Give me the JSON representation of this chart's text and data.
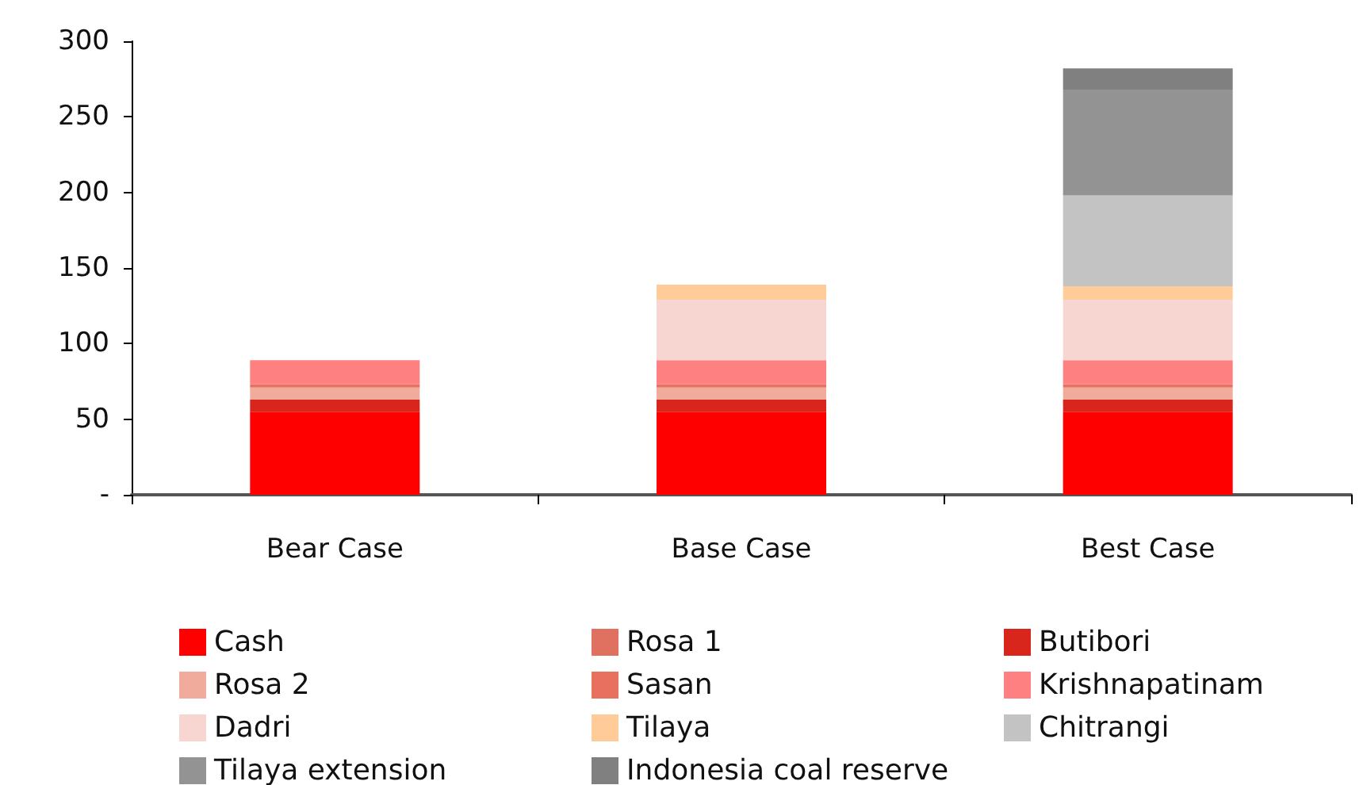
{
  "chart_data": {
    "type": "bar",
    "stacked": true,
    "categories": [
      "Bear Case",
      "Base Case",
      "Best Case"
    ],
    "ylim": [
      0,
      300
    ],
    "yticks": [
      {
        "value": 0,
        "label": "-"
      },
      50,
      100,
      150,
      200,
      250,
      300
    ],
    "grid": false,
    "legend": "bottom",
    "series": [
      {
        "name": "Cash",
        "color": "#ff0000",
        "values": [
          55,
          55,
          55
        ]
      },
      {
        "name": "Rosa 1",
        "color": "#e07060",
        "values": [
          null,
          null,
          null
        ]
      },
      {
        "name": "Butibori",
        "color": "#d9261c",
        "values": [
          8,
          8,
          8
        ]
      },
      {
        "name": "Rosa 2",
        "color": "#f0ab9c",
        "values": [
          8,
          8,
          8
        ]
      },
      {
        "name": "Sasan",
        "color": "#e8705f",
        "values": [
          2,
          2,
          2
        ]
      },
      {
        "name": "Krishnapatinam",
        "color": "#ff8080",
        "values": [
          16,
          16,
          16
        ]
      },
      {
        "name": "Dadri",
        "color": "#f7d6d2",
        "values": [
          null,
          40,
          40
        ]
      },
      {
        "name": "Tilaya",
        "color": "#ffcc99",
        "values": [
          null,
          10,
          9
        ]
      },
      {
        "name": "Chitrangi",
        "color": "#c3c3c3",
        "values": [
          null,
          null,
          60
        ]
      },
      {
        "name": "Tilaya extension",
        "color": "#939393",
        "values": [
          null,
          null,
          70
        ]
      },
      {
        "name": "Indonesia coal reserve",
        "color": "#808080",
        "values": [
          null,
          null,
          14
        ]
      }
    ]
  }
}
